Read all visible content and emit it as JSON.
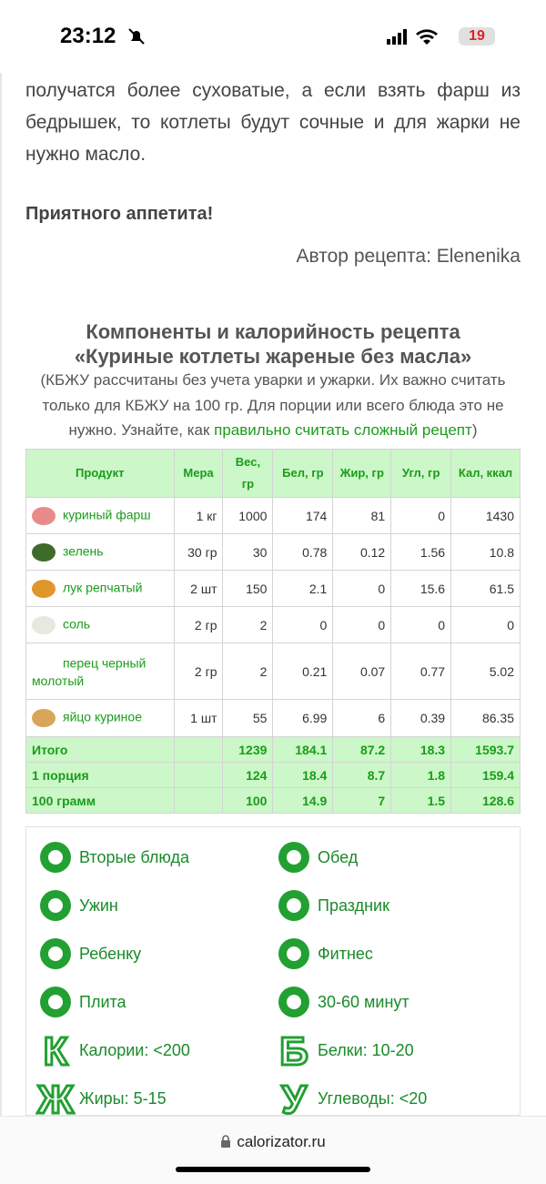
{
  "status": {
    "time": "23:12",
    "battery": "19"
  },
  "article": {
    "paragraph": "получатся более суховатые, а если взять фарш из бедрышек, то котлеты будут сочные и для жарки не нужно масло.",
    "greeting": "Приятного аппетита!",
    "author": "Автор рецепта: Elenenika"
  },
  "section": {
    "title_line1": "Компоненты и калорийность рецепта",
    "title_line2": "«Куриные котлеты жареные без масла»",
    "note_before": "(КБЖУ рассчитаны без учета уварки и ужарки. Их важно считать только для КБЖУ на 100 гр. Для порции или всего блюда это не нужно. Узнайте, как ",
    "note_link": "правильно считать сложный рецепт",
    "note_after": ")"
  },
  "table": {
    "header": [
      "Продукт",
      "Мера",
      "Вес, гр",
      "Бел, гр",
      "Жир, гр",
      "Угл, гр",
      "Кал, ккал"
    ],
    "rows": [
      [
        "куриный фарш",
        "1 кг",
        1000,
        174,
        81,
        0,
        1430
      ],
      [
        "зелень",
        "30 гр",
        30,
        0.78,
        0.12,
        1.56,
        10.8
      ],
      [
        "лук репчатый",
        "2 шт",
        150,
        2.1,
        0,
        15.6,
        61.5
      ],
      [
        "соль",
        "2 гр",
        2,
        0,
        0,
        0,
        0
      ],
      [
        "перец черный молотый",
        "2 гр",
        2,
        0.21,
        0.07,
        0.77,
        5.02
      ],
      [
        "яйцо куриное",
        "1 шт",
        55,
        6.99,
        6,
        0.39,
        86.35
      ]
    ],
    "totals": [
      [
        "Итого",
        1239,
        184.1,
        87.2,
        18.3,
        1593.7
      ],
      [
        "1 порция",
        124,
        18.4,
        8.7,
        1.8,
        159.4
      ],
      [
        "100 грамм",
        100,
        14.9,
        7,
        1.5,
        128.6
      ]
    ]
  },
  "tags": [
    {
      "label": "Вторые блюда"
    },
    {
      "label": "Обед"
    },
    {
      "label": "Ужин"
    },
    {
      "label": "Праздник"
    },
    {
      "label": "Ребенку"
    },
    {
      "label": "Фитнес"
    },
    {
      "label": "Плита"
    },
    {
      "label": "30-60 минут"
    },
    {
      "label": "Калории: <200",
      "letter": "К"
    },
    {
      "label": "Белки: 10-20",
      "letter": "Б"
    },
    {
      "label": "Жиры: 5-15",
      "letter": "Ж"
    },
    {
      "label": "Углеводы: <20",
      "letter": "У"
    }
  ],
  "footer": {
    "url": "calorizator.ru"
  }
}
